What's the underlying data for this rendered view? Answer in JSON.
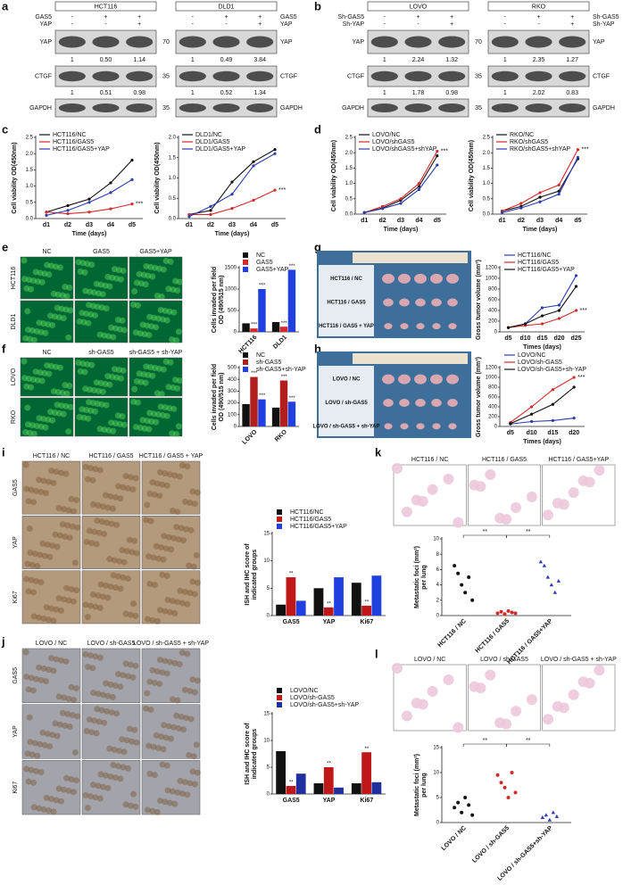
{
  "letters": [
    "a",
    "b",
    "c",
    "d",
    "e",
    "f",
    "g",
    "h",
    "i",
    "j",
    "k",
    "l"
  ],
  "blots": [
    {
      "conditions": [
        {
          "name": "GAS5",
          "signs": [
            "-",
            "+",
            "+"
          ]
        },
        {
          "name": "YAP",
          "signs": [
            "-",
            "-",
            "+"
          ]
        }
      ],
      "proteins": [
        "YAP",
        "CTGF",
        "GAPDH"
      ],
      "markers": [
        70,
        35,
        35
      ],
      "cells": [
        {
          "name": "HCT116",
          "quant": [
            [
              "1",
              "0.50",
              "1.14"
            ],
            [
              "1",
              "0.51",
              "0.98"
            ]
          ]
        },
        {
          "name": "DLD1",
          "quant": [
            [
              "1",
              "0.49",
              "3.84"
            ],
            [
              "1",
              "0.52",
              "1.34"
            ]
          ]
        }
      ]
    },
    {
      "conditions": [
        {
          "name": "Sh-GAS5",
          "signs": [
            "-",
            "+",
            "+"
          ]
        },
        {
          "name": "Sh-YAP",
          "signs": [
            "-",
            "-",
            "+"
          ]
        }
      ],
      "proteins": [
        "YAP",
        "CTGF",
        "GAPDH"
      ],
      "markers": [
        70,
        35,
        35
      ],
      "cells": [
        {
          "name": "LOVO",
          "quant": [
            [
              "1",
              "2.24",
              "1.32"
            ],
            [
              "1",
              "1.78",
              "0.98"
            ]
          ]
        },
        {
          "name": "RKO",
          "quant": [
            [
              "1",
              "2.35",
              "1.27"
            ],
            [
              "1",
              "2.02",
              "0.83"
            ]
          ]
        }
      ]
    }
  ],
  "micrographs": [
    {
      "columns": [
        "NC",
        "GAS5",
        "GAS5+YAP"
      ],
      "rows": [
        "HCT116",
        "DLD1"
      ],
      "color": "#2aa52a"
    },
    {
      "columns": [
        "NC",
        "sh-GAS5",
        "sh-GAS5 + sh-YAP"
      ],
      "rows": [
        "LOVO",
        "RKO"
      ],
      "color": "#2aa52a"
    },
    {
      "columns": [
        "HCT116 / NC",
        "HCT116 / GAS5",
        "HCT116 / GAS5 + YAP"
      ],
      "rows": [
        "GAS5",
        "YAP",
        "Ki67"
      ],
      "color": "#b49a7c"
    },
    {
      "columns": [
        "LOVO / NC",
        "LOVO / sh-GAS5",
        "LOVO / sh-GAS5 + sh-YAP"
      ],
      "rows": [
        "GAS5",
        "YAP",
        "Ki67"
      ],
      "color": "#a3a4ab"
    },
    {
      "columns": [
        "HCT116 / NC",
        "HCT116 / GAS5",
        "HCT116 / GAS5+YAP"
      ],
      "rows": [],
      "color": "#ecc8da"
    },
    {
      "columns": [
        "LOVO / NC",
        "LOVO / sh-GAS5",
        "LOVO / sh-GAS5 + sh-YAP"
      ],
      "rows": [],
      "color": "#ecc8da"
    }
  ],
  "tumor_photos": [
    {
      "rows": [
        "HCT116 / NC",
        "HCT116 / GAS5",
        "HCT116 / GAS5 + YAP"
      ]
    },
    {
      "rows": [
        "LOVO / NC",
        "LOVO / sh-GAS5",
        "LOVO / sh-GAS5 + sh-YAP"
      ]
    }
  ],
  "chart_data": [
    {
      "type": "line",
      "x_label": "Time (days)",
      "y_label": [
        "Cell viability OD(450nm)"
      ],
      "categories": [
        "d1",
        "d2",
        "d3",
        "d4",
        "d5"
      ],
      "series": [
        {
          "name": "HCT116/NC",
          "color": "#111111",
          "values": [
            0.2,
            0.4,
            0.6,
            1.1,
            1.8
          ]
        },
        {
          "name": "HCT116/GAS5",
          "color": "#d42a2a",
          "values": [
            0.2,
            0.15,
            0.2,
            0.3,
            0.45
          ]
        },
        {
          "name": "HCT116/GAS5+YAP",
          "color": "#2b3bb0",
          "values": [
            0.1,
            0.25,
            0.5,
            0.8,
            1.2
          ]
        }
      ],
      "ylim": [
        0,
        2.5
      ],
      "yticks": [
        {
          "value": 0,
          "label": "0.0"
        },
        0.5,
        {
          "value": 1,
          "label": "1.0"
        },
        1.5,
        {
          "value": 2,
          "label": "2.0"
        },
        2.5
      ],
      "annotations": [
        "***"
      ]
    },
    {
      "type": "line",
      "x_label": "Time (days)",
      "y_label": [
        "Cell viability OD(450nm)"
      ],
      "categories": [
        "d1",
        "d2",
        "d3",
        "d4",
        "d5"
      ],
      "series": [
        {
          "name": "DLD1/NC",
          "color": "#111111",
          "values": [
            0.1,
            0.2,
            0.9,
            1.4,
            1.7
          ]
        },
        {
          "name": "DLD1/GAS5",
          "color": "#d42a2a",
          "values": [
            0.1,
            0.1,
            0.25,
            0.45,
            0.7
          ]
        },
        {
          "name": "DLD1/GAS5+YAP",
          "color": "#2b3bb0",
          "values": [
            0.05,
            0.3,
            0.6,
            1.3,
            1.6
          ]
        }
      ],
      "ylim": [
        0,
        2
      ],
      "yticks": [
        {
          "value": 0,
          "label": "0.0"
        },
        0.5,
        {
          "value": 1,
          "label": "1.0"
        },
        1.5,
        {
          "value": 2,
          "label": "2.0"
        }
      ],
      "annotations": [
        "***"
      ]
    },
    {
      "type": "line",
      "x_label": "Time (days)",
      "y_label": [
        "Cell viability OD(450nm)"
      ],
      "categories": [
        "d1",
        "d2",
        "d3",
        "d4",
        "d5"
      ],
      "series": [
        {
          "name": "LOVO/NC",
          "color": "#111111",
          "values": [
            0.05,
            0.2,
            0.45,
            0.9,
            1.9
          ]
        },
        {
          "name": "LOVO/shGAS5",
          "color": "#d42a2a",
          "values": [
            0.05,
            0.25,
            0.5,
            1.0,
            2.05
          ]
        },
        {
          "name": "LOVO/shGAS5+shYAP",
          "color": "#2b3bb0",
          "values": [
            0.05,
            0.18,
            0.35,
            0.8,
            1.6
          ]
        }
      ],
      "ylim": [
        0,
        2.5
      ],
      "yticks": [
        {
          "value": 0,
          "label": "0.0"
        },
        0.5,
        {
          "value": 1,
          "label": "1.0"
        },
        1.5,
        {
          "value": 2,
          "label": "2.0"
        },
        2.5
      ],
      "annotations": [
        "***"
      ]
    },
    {
      "type": "line",
      "x_label": "Time (days)",
      "y_label": [
        "Cell viability OD(450nm)"
      ],
      "categories": [
        "d1",
        "d2",
        "d3",
        "d4",
        "d5"
      ],
      "series": [
        {
          "name": "RKO/NC",
          "color": "#111111",
          "values": [
            0.1,
            0.25,
            0.55,
            0.75,
            1.8
          ]
        },
        {
          "name": "RKO/shGAS5",
          "color": "#d42a2a",
          "values": [
            0.1,
            0.35,
            0.7,
            0.95,
            2.1
          ]
        },
        {
          "name": "RKO/shGAS5+shYAP",
          "color": "#2b3bb0",
          "values": [
            0.05,
            0.2,
            0.4,
            0.65,
            1.85
          ]
        }
      ],
      "ylim": [
        0,
        2.5
      ],
      "yticks": [
        {
          "value": 0,
          "label": "0.0"
        },
        0.5,
        {
          "value": 1,
          "label": "1.0"
        },
        1.5,
        {
          "value": 2,
          "label": "2.0"
        },
        2.5
      ],
      "annotations": [
        "***"
      ]
    },
    {
      "type": "bar",
      "y_label": [
        "Cells invaded per field",
        "OD (490/515 nm)"
      ],
      "categories": [
        "HCT116",
        "DLD1"
      ],
      "series": [
        {
          "name": "NC",
          "color": "#111111",
          "values": [
            200,
            230
          ],
          "significance": [
            null,
            null
          ]
        },
        {
          "name": "GAS5",
          "color": "#d42a2a",
          "values": [
            80,
            120
          ],
          "significance": [
            "***",
            "***"
          ]
        },
        {
          "name": "GAS5+YAP",
          "color": "#1f3fe0",
          "values": [
            1000,
            1450
          ],
          "significance": [
            "***",
            "***"
          ]
        }
      ],
      "ylim": [
        0,
        1500
      ],
      "yticks": [
        0,
        500,
        1000,
        1500
      ]
    },
    {
      "type": "line",
      "x_label": "Times (days)",
      "y_label": [
        "Gross tumor volume (mm³)"
      ],
      "categories": [
        "d5",
        "d10",
        "d15",
        "d20",
        "d25"
      ],
      "series": [
        {
          "name": "HCT116/NC",
          "color": "#2b3bb0",
          "values": [
            80,
            150,
            450,
            500,
            1050
          ]
        },
        {
          "name": "HCT116/GAS5",
          "color": "#d42a2a",
          "values": [
            80,
            120,
            150,
            250,
            400
          ]
        },
        {
          "name": "HCT116/GAS5+YAP",
          "color": "#111111",
          "values": [
            80,
            150,
            300,
            400,
            850
          ]
        }
      ],
      "ylim": [
        0,
        1200
      ],
      "yticks": [
        0,
        200,
        400,
        600,
        800,
        1000,
        1200
      ],
      "annotations": [
        "***"
      ]
    },
    {
      "type": "bar",
      "y_label": [
        "Cells invaded per field",
        "OD (490/515 nm)"
      ],
      "categories": [
        "LOVO",
        "RKO"
      ],
      "series": [
        {
          "name": "NC",
          "color": "#111111",
          "values": [
            190,
            160
          ],
          "significance": [
            null,
            null
          ]
        },
        {
          "name": "sh-GAS5",
          "color": "#b01e1e",
          "values": [
            420,
            390
          ],
          "significance": [
            "***",
            "***"
          ]
        },
        {
          "name": "sh-GAS5+sh-YAP",
          "color": "#1f3fe0",
          "values": [
            230,
            210
          ],
          "significance": [
            "***",
            "***"
          ]
        }
      ],
      "ylim": [
        0,
        500
      ],
      "yticks": [
        0,
        100,
        200,
        300,
        400,
        500
      ]
    },
    {
      "type": "line",
      "x_label": "Times (days)",
      "y_label": [
        "Gross tumor volume (mm³)"
      ],
      "categories": [
        "d5",
        "d10",
        "d15",
        "d20"
      ],
      "series": [
        {
          "name": "LOVO/NC",
          "color": "#2b3bb0",
          "values": [
            50,
            100,
            120,
            170
          ]
        },
        {
          "name": "LOVO/sh-GAS5",
          "color": "#d42a2a",
          "values": [
            80,
            400,
            750,
            1000
          ]
        },
        {
          "name": "LOVO/sh-GAS5+sh-YAP",
          "color": "#111111",
          "values": [
            60,
            250,
            450,
            800
          ]
        }
      ],
      "ylim": [
        0,
        1200
      ],
      "yticks": [
        0,
        200,
        400,
        600,
        800,
        1000,
        1200
      ],
      "annotations": [
        "***"
      ]
    },
    {
      "type": "bar",
      "y_label": [
        "ISH and IHC score of",
        "indicated groups"
      ],
      "categories": [
        "GAS5",
        "YAP",
        "Ki67"
      ],
      "series": [
        {
          "name": "HCT116/NC",
          "color": "#111111",
          "values": [
            2,
            5,
            6
          ],
          "significance": [
            null,
            null,
            null
          ]
        },
        {
          "name": "HCT116/GAS5",
          "color": "#c01818",
          "values": [
            7,
            1.5,
            1.8
          ],
          "significance": [
            "**",
            "**",
            "**"
          ]
        },
        {
          "name": "HCT116/GAS5+YAP",
          "color": "#1f3fe0",
          "values": [
            2.7,
            7,
            7.3
          ],
          "significance": [
            null,
            null,
            null
          ]
        }
      ],
      "ylim": [
        0,
        15
      ],
      "yticks": [
        0,
        5,
        10,
        15
      ]
    },
    {
      "type": "bar",
      "y_label": [
        "ISH and IHC score of",
        "indicated groups"
      ],
      "categories": [
        "GAS5",
        "YAP",
        "Ki67"
      ],
      "series": [
        {
          "name": "LOVO/NC",
          "color": "#111111",
          "values": [
            8,
            2,
            2
          ],
          "significance": [
            null,
            null,
            null
          ]
        },
        {
          "name": "LOVO/sh-GAS5",
          "color": "#c01818",
          "values": [
            1.5,
            5,
            7.8
          ],
          "significance": [
            "**",
            "**",
            "**"
          ]
        },
        {
          "name": "LOVO/sh-GAS5+sh-YAP",
          "color": "#1f2f9e",
          "values": [
            3.8,
            1.2,
            2.2
          ],
          "significance": [
            null,
            null,
            null
          ]
        }
      ],
      "ylim": [
        0,
        15
      ],
      "yticks": [
        0,
        5,
        10,
        15
      ]
    },
    {
      "type": "scatter",
      "y_label": [
        "Metastatic foci (mm²)",
        "per lung"
      ],
      "categories": [
        "HCT116 / NC",
        "HCT116 / GAS5",
        "HCT116 / GAS5+YAP"
      ],
      "colors": [
        "#111111",
        "#d42a2a",
        "#2b3bb0"
      ],
      "points": [
        [
          6.5,
          5.5,
          4,
          3,
          5,
          2
        ],
        [
          0.3,
          0.5,
          0.2,
          0.6,
          0.4,
          0.3
        ],
        [
          7,
          6.5,
          5,
          4,
          3,
          4.5
        ]
      ],
      "ylim": [
        0,
        10
      ],
      "yticks": [
        0,
        2,
        4,
        6,
        8,
        10
      ],
      "annotations": [
        "**",
        "**"
      ]
    },
    {
      "type": "scatter",
      "y_label": [
        "Metastatic foci (mm²)",
        "per lung"
      ],
      "categories": [
        "LOVO / NC",
        "LOVO / sh-GAS5",
        "LOVO / sh-GAS5+sh-YAP"
      ],
      "colors": [
        "#111111",
        "#d42a2a",
        "#2b3bb0"
      ],
      "points": [
        [
          3,
          4,
          2,
          5,
          3.5,
          1.5
        ],
        [
          9.5,
          8,
          7,
          5,
          10,
          6
        ],
        [
          1,
          1.5,
          0.5,
          2,
          1.2
        ]
      ],
      "ylim": [
        0,
        15
      ],
      "yticks": [
        0,
        5,
        10,
        15
      ],
      "annotations": [
        "**",
        "**"
      ]
    }
  ]
}
